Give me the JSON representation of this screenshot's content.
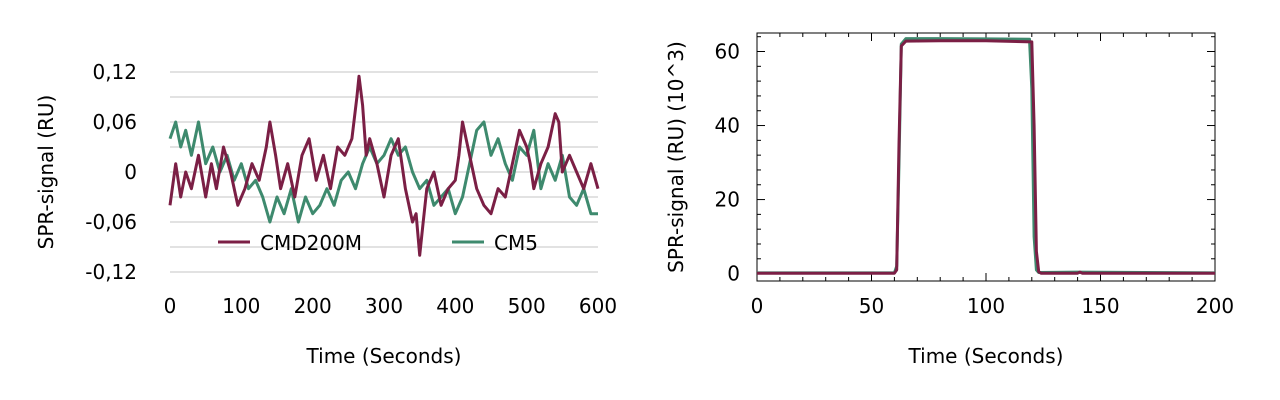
{
  "chart_data": [
    {
      "type": "line",
      "xlabel": "Time (Seconds)",
      "ylabel": "SPR-signal (RU)",
      "xlim": [
        0,
        600
      ],
      "ylim": [
        -0.12,
        0.12
      ],
      "x_ticks": [
        0,
        100,
        200,
        300,
        400,
        500,
        600
      ],
      "y_ticks": [
        0.12,
        0.06,
        0,
        -0.06,
        -0.12
      ],
      "x_tick_labels": [
        "0",
        "100",
        "200",
        "300",
        "400",
        "500",
        "600"
      ],
      "y_tick_labels": [
        "0,12",
        "0,06",
        "0",
        "-0,06",
        "-0,12"
      ],
      "grid": "horizontal",
      "legend_placement": "bottom-inside",
      "series": [
        {
          "name": "CMD200M",
          "color": "#7b1f45",
          "x": [
            0,
            8,
            15,
            22,
            30,
            40,
            50,
            58,
            65,
            75,
            85,
            95,
            105,
            115,
            125,
            135,
            140,
            148,
            155,
            165,
            175,
            185,
            195,
            205,
            215,
            225,
            235,
            245,
            255,
            262,
            265,
            270,
            275,
            280,
            290,
            300,
            310,
            320,
            330,
            340,
            345,
            350,
            355,
            360,
            370,
            380,
            390,
            400,
            405,
            410,
            420,
            430,
            440,
            450,
            460,
            470,
            480,
            490,
            500,
            505,
            510,
            520,
            530,
            540,
            545,
            550,
            560,
            570,
            580,
            590,
            600
          ],
          "y": [
            -0.04,
            0.01,
            -0.03,
            0.0,
            -0.02,
            0.02,
            -0.03,
            0.01,
            -0.02,
            0.03,
            0.0,
            -0.04,
            -0.02,
            0.01,
            -0.01,
            0.03,
            0.06,
            0.02,
            -0.02,
            0.01,
            -0.03,
            0.02,
            0.04,
            -0.01,
            0.02,
            -0.02,
            0.03,
            0.02,
            0.04,
            0.09,
            0.115,
            0.08,
            0.02,
            0.04,
            0.01,
            -0.03,
            0.02,
            0.04,
            -0.02,
            -0.06,
            -0.05,
            -0.1,
            -0.06,
            -0.02,
            0.0,
            -0.04,
            -0.02,
            -0.01,
            0.02,
            0.06,
            0.02,
            -0.02,
            -0.04,
            -0.05,
            -0.02,
            -0.03,
            0.01,
            0.05,
            0.03,
            0.01,
            -0.02,
            0.01,
            0.03,
            0.07,
            0.06,
            0.0,
            0.02,
            0.0,
            -0.02,
            0.01,
            -0.02
          ]
        },
        {
          "name": "CM5",
          "color": "#3e8a6e",
          "x": [
            0,
            8,
            15,
            22,
            30,
            40,
            50,
            60,
            70,
            80,
            90,
            100,
            110,
            120,
            130,
            140,
            150,
            160,
            170,
            180,
            190,
            200,
            210,
            220,
            230,
            240,
            250,
            260,
            270,
            280,
            290,
            300,
            310,
            320,
            330,
            340,
            350,
            360,
            370,
            380,
            390,
            400,
            410,
            420,
            430,
            440,
            450,
            460,
            470,
            480,
            490,
            500,
            510,
            520,
            530,
            540,
            550,
            560,
            570,
            580,
            590,
            600
          ],
          "y": [
            0.04,
            0.06,
            0.03,
            0.05,
            0.02,
            0.06,
            0.01,
            0.03,
            0.0,
            0.02,
            -0.01,
            0.01,
            -0.02,
            -0.01,
            -0.03,
            -0.06,
            -0.03,
            -0.05,
            -0.02,
            -0.06,
            -0.03,
            -0.05,
            -0.04,
            -0.02,
            -0.04,
            -0.01,
            0.0,
            -0.02,
            0.01,
            0.03,
            0.01,
            0.02,
            0.04,
            0.02,
            0.03,
            0.0,
            -0.02,
            -0.01,
            -0.04,
            -0.03,
            -0.02,
            -0.05,
            -0.03,
            0.01,
            0.05,
            0.06,
            0.02,
            0.04,
            0.01,
            -0.01,
            0.03,
            0.02,
            0.05,
            -0.02,
            0.01,
            -0.01,
            0.02,
            -0.03,
            -0.04,
            -0.02,
            -0.05,
            -0.05
          ]
        }
      ]
    },
    {
      "type": "line",
      "xlabel": "Time (Seconds)",
      "ylabel": "SPR-signal (RU) (10^3)",
      "xlim": [
        0,
        200
      ],
      "ylim": [
        -2,
        65
      ],
      "x_ticks": [
        0,
        50,
        100,
        150,
        200
      ],
      "y_ticks": [
        0,
        20,
        40,
        60
      ],
      "x_tick_labels": [
        "0",
        "50",
        "100",
        "150",
        "200"
      ],
      "y_tick_labels": [
        "0",
        "20",
        "40",
        "60"
      ],
      "grid": "none",
      "series": [
        {
          "color": "#3e8a6e",
          "x": [
            0,
            60,
            61,
            62,
            63,
            65,
            80,
            100,
            119,
            120,
            121,
            122,
            123,
            140,
            200
          ],
          "y": [
            0.2,
            0.2,
            2,
            30,
            62,
            63.5,
            63.5,
            63.4,
            63.3,
            50,
            10,
            1,
            0.3,
            0.4,
            0.2
          ]
        },
        {
          "color": "#7b1f45",
          "x": [
            0,
            60,
            61,
            62,
            63,
            65,
            80,
            100,
            120,
            121,
            122,
            123,
            124,
            140,
            141,
            142,
            200
          ],
          "y": [
            0.1,
            0.1,
            1,
            35,
            61.5,
            62.8,
            62.9,
            62.9,
            62.6,
            40,
            6,
            0.5,
            0.1,
            0.1,
            0.4,
            0.1,
            0.1
          ]
        }
      ]
    }
  ]
}
